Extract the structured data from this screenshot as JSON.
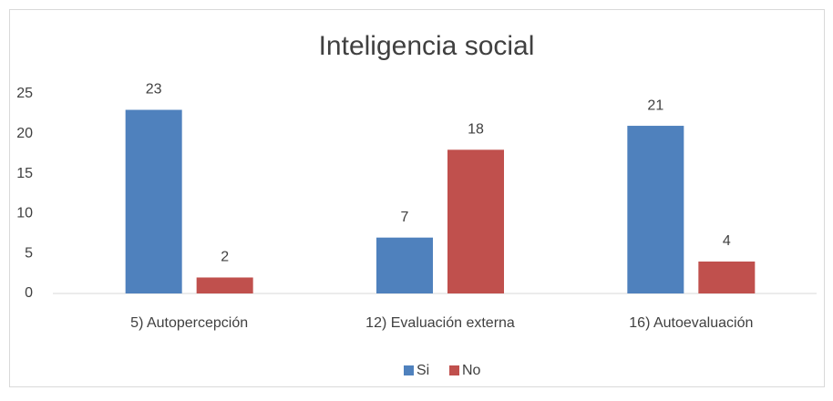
{
  "chart_data": {
    "type": "bar",
    "title": "Inteligencia social",
    "categories": [
      "5) Autopercepción",
      "12) Evaluación externa",
      "16) Autoevaluación"
    ],
    "series": [
      {
        "name": "Si",
        "color": "#4f81bd",
        "values": [
          23,
          7,
          21
        ]
      },
      {
        "name": "No",
        "color": "#c0504d",
        "values": [
          2,
          18,
          4
        ]
      }
    ],
    "ylim": [
      0,
      25
    ],
    "yticks": [
      0,
      5,
      10,
      15,
      20,
      25
    ],
    "grid": false,
    "legend": "bottom"
  }
}
